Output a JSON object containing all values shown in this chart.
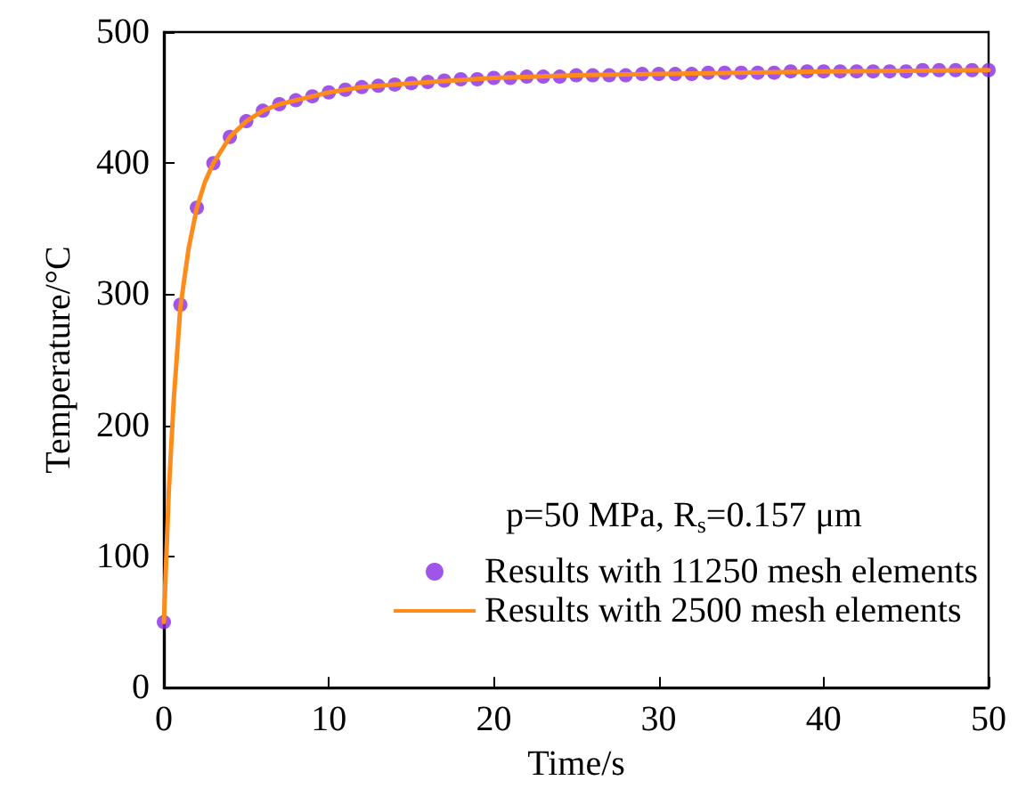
{
  "chart_data": {
    "type": "scatter",
    "xlabel": "Time/s",
    "ylabel": "Temperature/°C",
    "legend_title": "p=50 MPa, R$_{s}$=0.157 μm",
    "xlim": [
      0,
      50
    ],
    "xticks": [
      0,
      10,
      20,
      30,
      40,
      50
    ],
    "ylim": [
      0,
      500
    ],
    "yticks": [
      0,
      100,
      200,
      300,
      400,
      500
    ],
    "grid": false,
    "legend": "bottom right",
    "marker": "circle",
    "series": [
      {
        "name": "Results with 11250 mesh elements",
        "color": "#8a2be2",
        "x": [
          0,
          1,
          2,
          3,
          4,
          5,
          6,
          7,
          8,
          9,
          10,
          11,
          12,
          13,
          14,
          15,
          16,
          17,
          18,
          19,
          20,
          21,
          22,
          23,
          24,
          25,
          26,
          27,
          28,
          29,
          30,
          31,
          32,
          33,
          34,
          35,
          36,
          37,
          38,
          39,
          40,
          41,
          42,
          43,
          44,
          45,
          46,
          47,
          48,
          49,
          50
        ],
        "values": [
          50,
          292,
          366,
          400,
          420,
          432,
          440,
          445,
          448,
          451,
          454,
          456,
          458,
          459,
          460,
          461,
          462,
          463,
          464,
          464,
          465,
          465,
          466,
          466,
          466,
          467,
          467,
          467,
          467,
          468,
          468,
          468,
          468,
          469,
          469,
          469,
          469,
          469,
          470,
          470,
          470,
          470,
          470,
          470,
          470,
          470,
          471,
          471,
          471,
          471,
          471
        ]
      },
      {
        "name": "Results with 2500 mesh elements",
        "type": "line",
        "color": "#ff8c1a",
        "marker": "none",
        "line_style": "solid",
        "x": [
          0,
          0.3,
          0.6,
          1,
          1.5,
          2,
          2.5,
          3,
          4,
          5,
          6,
          7,
          8,
          10,
          12,
          15,
          20,
          25,
          30,
          40,
          50
        ],
        "values": [
          50,
          150,
          220,
          290,
          335,
          366,
          386,
          400,
          420,
          432,
          440,
          445,
          448,
          454,
          458,
          461,
          465,
          467,
          468,
          470,
          471
        ]
      }
    ]
  }
}
